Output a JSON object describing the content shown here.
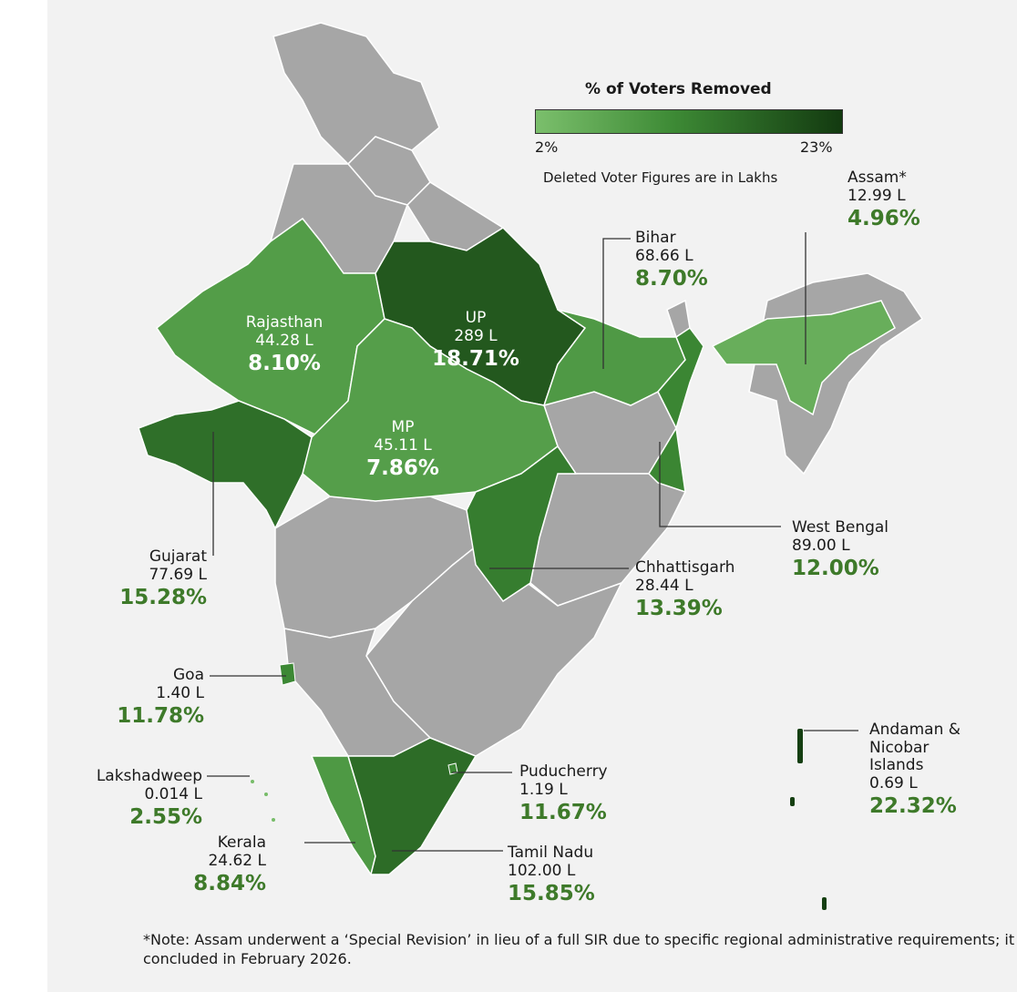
{
  "legend": {
    "title": "% of Voters Removed",
    "min": "2%",
    "max": "23%",
    "note": "Deleted Voter Figures are in Lakhs",
    "color_min": "#7bbf6c",
    "color_max": "#133a10"
  },
  "colors": {
    "no_data": "#a6a6a6",
    "border": "#ffffff",
    "percent_text": "#3e7a2a"
  },
  "states": {
    "rajasthan": {
      "name": "Rajasthan",
      "deleted": "44.28 L",
      "percent": "8.10%",
      "value": 8.1
    },
    "up": {
      "name": "UP",
      "deleted": "289 L",
      "percent": "18.71%",
      "value": 18.71
    },
    "mp": {
      "name": "MP",
      "deleted": "45.11 L",
      "percent": "7.86%",
      "value": 7.86
    },
    "bihar": {
      "name": "Bihar",
      "deleted": "68.66 L",
      "percent": "8.70%",
      "value": 8.7
    },
    "assam": {
      "name": "Assam*",
      "deleted": "12.99 L",
      "percent": "4.96%",
      "value": 4.96
    },
    "gujarat": {
      "name": "Gujarat",
      "deleted": "77.69 L",
      "percent": "15.28%",
      "value": 15.28
    },
    "west_bengal": {
      "name": "West Bengal",
      "deleted": "89.00 L",
      "percent": "12.00%",
      "value": 12.0
    },
    "chhattisgarh": {
      "name": "Chhattisgarh",
      "deleted": "28.44 L",
      "percent": "13.39%",
      "value": 13.39
    },
    "goa": {
      "name": "Goa",
      "deleted": "1.40 L",
      "percent": "11.78%",
      "value": 11.78
    },
    "lakshadweep": {
      "name": "Lakshadweep",
      "deleted": "0.014 L",
      "percent": "2.55%",
      "value": 2.55
    },
    "puducherry": {
      "name": "Puducherry",
      "deleted": "1.19 L",
      "percent": "11.67%",
      "value": 11.67
    },
    "andaman": {
      "name_line1": "Andaman &",
      "name_line2": "Nicobar",
      "name_line3": "Islands",
      "deleted": "0.69 L",
      "percent": "22.32%",
      "value": 22.32
    },
    "kerala": {
      "name": "Kerala",
      "deleted": "24.62 L",
      "percent": "8.84%",
      "value": 8.84
    },
    "tamil_nadu": {
      "name": "Tamil Nadu",
      "deleted": "102.00 L",
      "percent": "15.85%",
      "value": 15.85
    }
  },
  "footnote": "*Note: Assam underwent a ‘Special Revision’ in lieu of a full SIR due to specific regional administrative requirements; it concluded in February 2026."
}
